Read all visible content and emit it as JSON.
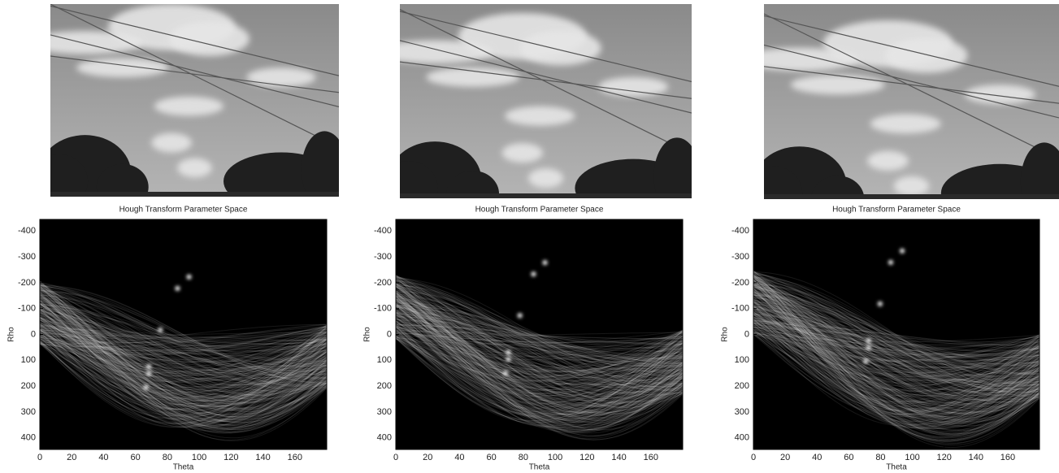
{
  "chart_data": [
    {
      "type": "heatmap",
      "title": "Hough Transform Parameter Space",
      "x_label": "Theta",
      "y_label": "Rho",
      "xlim": [
        0,
        180
      ],
      "ylim": [
        -445,
        445
      ],
      "y_inverted": true,
      "colormap": "gray",
      "xticks": [
        0,
        20,
        40,
        60,
        80,
        100,
        120,
        140,
        160
      ],
      "yticks": [
        -400,
        -300,
        -200,
        -100,
        0,
        100,
        200,
        300,
        400
      ]
    },
    {
      "type": "heatmap",
      "title": "Hough Transform Parameter Space",
      "x_label": "Theta",
      "y_label": "Rho",
      "xlim": [
        0,
        180
      ],
      "ylim": [
        -445,
        445
      ],
      "y_inverted": true,
      "colormap": "gray",
      "xticks": [
        0,
        20,
        40,
        60,
        80,
        100,
        120,
        140,
        160
      ],
      "yticks": [
        -400,
        -300,
        -200,
        -100,
        0,
        100,
        200,
        300,
        400
      ]
    },
    {
      "type": "heatmap",
      "title": "Hough Transform Parameter Space",
      "x_label": "Theta",
      "y_label": "Rho",
      "xlim": [
        0,
        180
      ],
      "ylim": [
        -445,
        445
      ],
      "y_inverted": true,
      "colormap": "gray",
      "xticks": [
        0,
        20,
        40,
        60,
        80,
        100,
        120,
        140,
        160
      ],
      "yticks": [
        -400,
        -300,
        -200,
        -100,
        0,
        100,
        200,
        300,
        400
      ]
    }
  ]
}
